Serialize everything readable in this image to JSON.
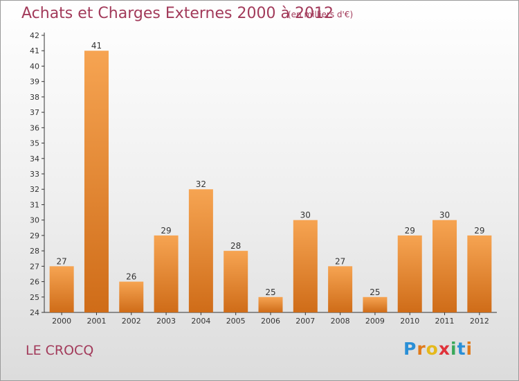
{
  "title": "Achats et Charges Externes 2000 à 2012",
  "subtitle": "(en milliers d'€)",
  "commune": "LE CROCQ",
  "brand": {
    "letters": [
      "P",
      "r",
      "o",
      "x",
      "i",
      "t",
      "i"
    ],
    "colors": [
      "#2a8fd6",
      "#e07a1a",
      "#e5b91c",
      "#e0323a",
      "#3aa85a",
      "#2a8fd6",
      "#e07a1a"
    ]
  },
  "colors": {
    "bar_top": "#f6a452",
    "bar_bottom": "#cf6c18",
    "axis": "#333333",
    "text": "#333333",
    "accent": "#a23a5a"
  },
  "chart_data": {
    "type": "bar",
    "categories": [
      "2000",
      "2001",
      "2002",
      "2003",
      "2004",
      "2005",
      "2006",
      "2007",
      "2008",
      "2009",
      "2010",
      "2011",
      "2012"
    ],
    "values": [
      27,
      41,
      26,
      29,
      32,
      28,
      25,
      30,
      27,
      25,
      29,
      30,
      29
    ],
    "ylim": [
      24,
      42
    ],
    "yticks": [
      24,
      25,
      26,
      27,
      28,
      29,
      30,
      31,
      32,
      33,
      34,
      35,
      36,
      37,
      38,
      39,
      40,
      41,
      42
    ],
    "grid": false,
    "data_labels": true
  }
}
